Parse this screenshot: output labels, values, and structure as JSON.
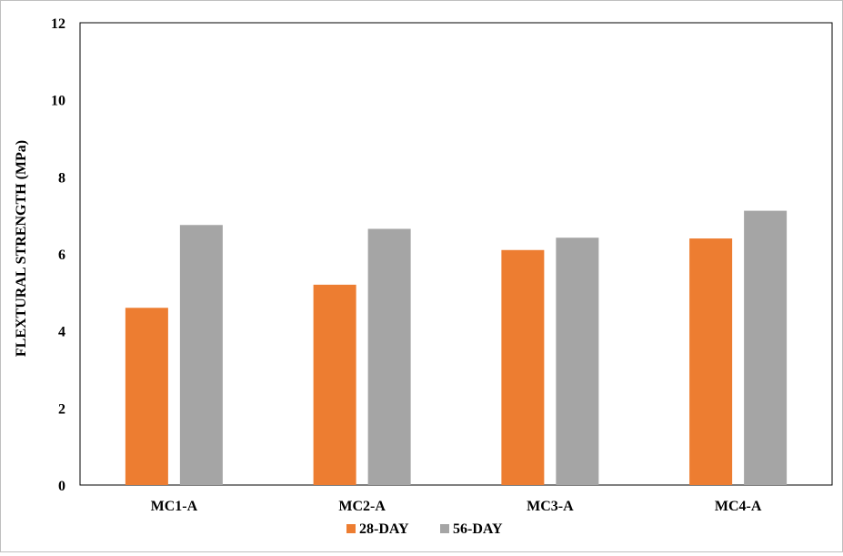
{
  "chart_data": {
    "type": "bar",
    "title": "",
    "xlabel": "",
    "ylabel": "FLEXTURAL STRENGTH (MPa)",
    "categories": [
      "MC1-A",
      "MC2-A",
      "MC3-A",
      "MC4-A"
    ],
    "series": [
      {
        "name": "28-DAY",
        "color": "#ed7d31",
        "values": [
          4.6,
          5.2,
          6.1,
          6.4
        ]
      },
      {
        "name": "56-DAY",
        "color": "#a5a5a5",
        "values": [
          6.75,
          6.65,
          6.42,
          7.12
        ]
      }
    ],
    "ylim": [
      0,
      12
    ],
    "yticks": [
      "0",
      "2",
      "4",
      "6",
      "8",
      "10",
      "12"
    ],
    "grid": false,
    "legend_position": "bottom"
  }
}
